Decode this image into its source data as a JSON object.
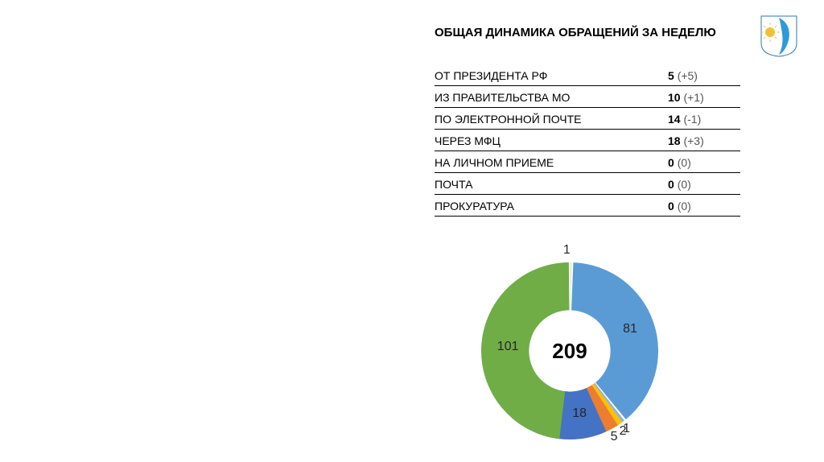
{
  "title": "ОБЩАЯ ДИНАМИКА ОБРАЩЕНИЙ ЗА НЕДЕЛЮ",
  "table": {
    "rows": [
      {
        "label": "ОТ ПРЕЗИДЕНТА РФ",
        "value": "5",
        "delta": "(+5)"
      },
      {
        "label": "ИЗ ПРАВИТЕЛЬСТВА МО",
        "value": "10",
        "delta": "(+1)"
      },
      {
        "label": "ПО ЭЛЕКТРОННОЙ ПОЧТЕ",
        "value": "14",
        "delta": "(-1)"
      },
      {
        "label": "ЧЕРЕЗ МФЦ",
        "value": "18",
        "delta": "(+3)"
      },
      {
        "label": "НА ЛИЧНОМ ПРИЕМЕ",
        "value": "0",
        "delta": "(0)"
      },
      {
        "label": "ПОЧТА",
        "value": "0",
        "delta": "(0)"
      },
      {
        "label": "ПРОКУРАТУРА",
        "value": "0",
        "delta": "(0)"
      }
    ]
  },
  "donut": {
    "type": "donut",
    "center_value": "209",
    "center_fontsize": 26,
    "background_color": "#ffffff",
    "hole_ratio": 0.46,
    "slices": [
      {
        "value": 1,
        "color": "#c5e0b3",
        "label": "1"
      },
      {
        "value": 81,
        "color": "#5b9bd5",
        "label": "81"
      },
      {
        "value": 1,
        "color": "#8eb4e3",
        "label": "1"
      },
      {
        "value": 2,
        "color": "#ffc000",
        "label": "2"
      },
      {
        "value": 5,
        "color": "#ed7d31",
        "label": "5"
      },
      {
        "value": 18,
        "color": "#4472c4",
        "label": "18"
      },
      {
        "value": 101,
        "color": "#70ad47",
        "label": "101"
      }
    ],
    "label_fontsize": 16,
    "label_color": "#262626"
  },
  "logo": {
    "shield_bg": "#ffffff",
    "shield_border": "#2e75b6",
    "swoosh_color": "#2e9ad6",
    "sun_color": "#f2c037"
  }
}
